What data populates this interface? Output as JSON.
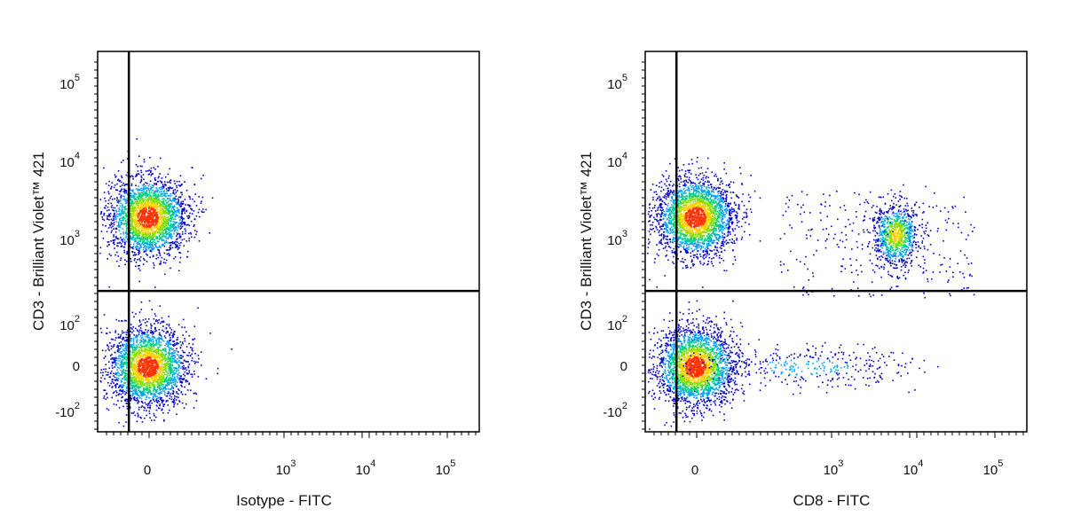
{
  "chart_data": [
    {
      "type": "scatter",
      "subtype": "flow-cytometry-density-dot-plot",
      "xlabel": "Isotype - FITC",
      "ylabel": "CD3 - Brilliant Violet™ 421",
      "x_scale": "biexponential",
      "y_scale": "biexponential",
      "x_ticks": [
        "0",
        "10^3",
        "10^4",
        "10^5"
      ],
      "y_ticks": [
        "-10^2",
        "0",
        "10^2",
        "10^3",
        "10^4",
        "10^5"
      ],
      "quadrant_gate": {
        "x_threshold": 200,
        "y_threshold": 150
      },
      "populations": [
        {
          "name": "CD3+ FITC-",
          "x_center": 0,
          "y_center": 2000,
          "density": "high"
        },
        {
          "name": "CD3- FITC-",
          "x_center": 0,
          "y_center": 0,
          "density": "high"
        }
      ],
      "grid": false,
      "legend": "none",
      "colormap": [
        "#0000cc",
        "#00a0ff",
        "#00d080",
        "#80e000",
        "#ffd000",
        "#ff3000"
      ]
    },
    {
      "type": "scatter",
      "subtype": "flow-cytometry-density-dot-plot",
      "xlabel": "CD8 - FITC",
      "ylabel": "CD3 - Brilliant Violet™ 421",
      "x_scale": "biexponential",
      "y_scale": "biexponential",
      "x_ticks": [
        "0",
        "10^3",
        "10^4",
        "10^5"
      ],
      "y_ticks": [
        "-10^2",
        "0",
        "10^2",
        "10^3",
        "10^4",
        "10^5"
      ],
      "quadrant_gate": {
        "x_threshold": 200,
        "y_threshold": 150
      },
      "populations": [
        {
          "name": "CD3+ CD8-",
          "x_center": 0,
          "y_center": 2000,
          "density": "high"
        },
        {
          "name": "CD3+ CD8+",
          "x_center": 6000,
          "y_center": 1200,
          "density": "medium"
        },
        {
          "name": "CD3- CD8-",
          "x_center": 0,
          "y_center": 0,
          "density": "high"
        },
        {
          "name": "CD3- CD8 dim",
          "x_center": 800,
          "y_center": 0,
          "density": "low"
        }
      ],
      "grid": false,
      "legend": "none",
      "colormap": [
        "#0000cc",
        "#00a0ff",
        "#00d080",
        "#80e000",
        "#ffd000",
        "#ff3000"
      ]
    }
  ]
}
